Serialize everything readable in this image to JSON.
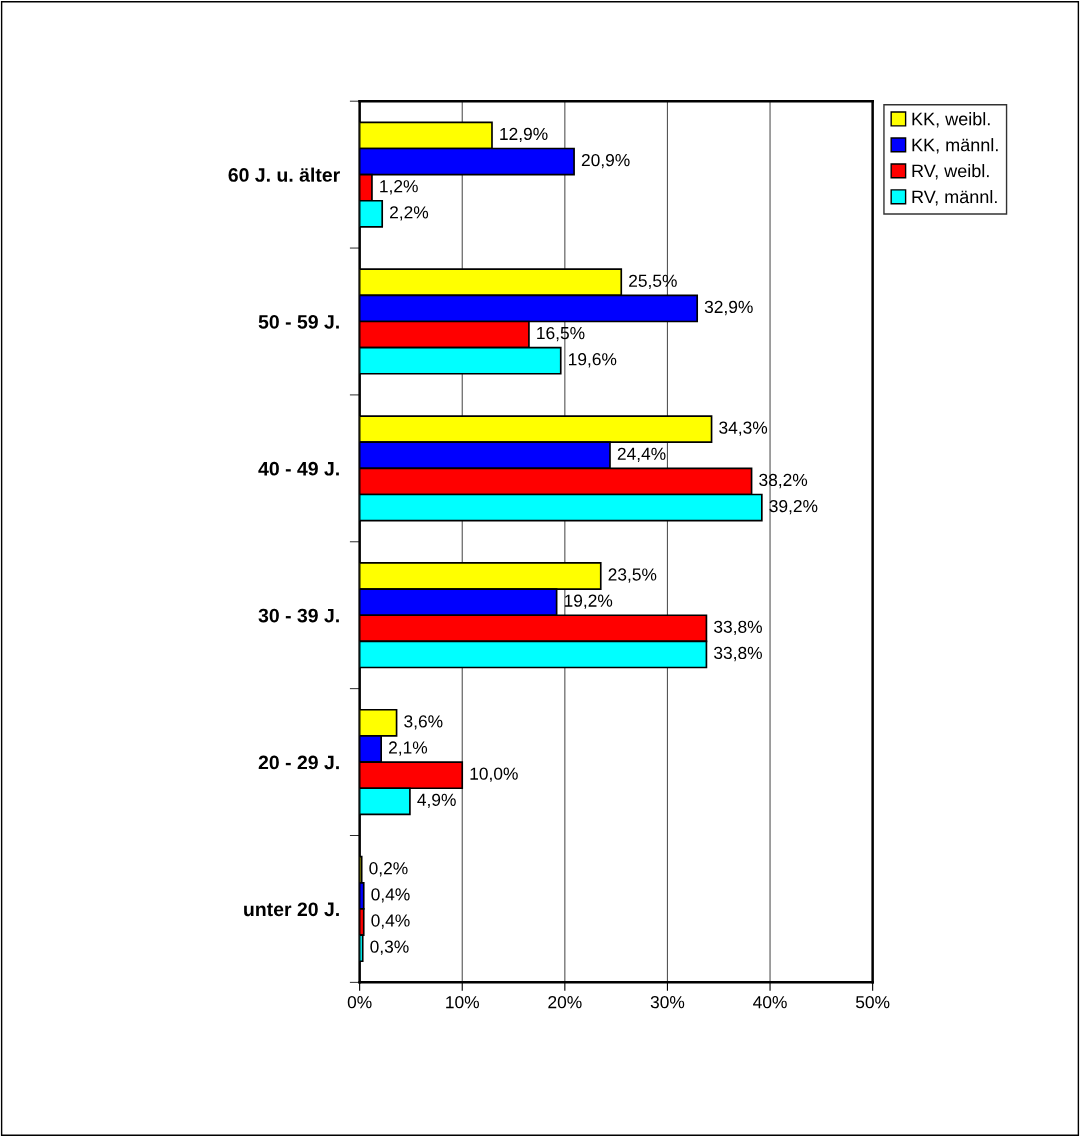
{
  "chart_data": {
    "type": "bar",
    "orientation": "horizontal",
    "categories": [
      "60 J. u. älter",
      "50 - 59 J.",
      "40 - 49 J.",
      "30 - 39 J.",
      "20 - 29 J.",
      "unter 20 J."
    ],
    "series": [
      {
        "name": "KK, weibl.",
        "color": "#ffff00",
        "values": [
          12.9,
          25.5,
          34.3,
          23.5,
          3.6,
          0.2
        ],
        "value_labels": [
          "12,9%",
          "25,5%",
          "34,3%",
          "23,5%",
          "3,6%",
          "0,2%"
        ]
      },
      {
        "name": "KK, männl.",
        "color": "#0000ff",
        "values": [
          20.9,
          32.9,
          24.4,
          19.2,
          2.1,
          0.4
        ],
        "value_labels": [
          "20,9%",
          "32,9%",
          "24,4%",
          "19,2%",
          "2,1%",
          "0,4%"
        ]
      },
      {
        "name": "RV, weibl.",
        "color": "#ff0000",
        "values": [
          1.2,
          16.5,
          38.2,
          33.8,
          10.0,
          0.4
        ],
        "value_labels": [
          "1,2%",
          "16,5%",
          "38,2%",
          "33,8%",
          "10,0%",
          "0,4%"
        ]
      },
      {
        "name": "RV, männl.",
        "color": "#00ffff",
        "values": [
          2.2,
          19.6,
          39.2,
          33.8,
          4.9,
          0.3
        ],
        "value_labels": [
          "2,2%",
          "19,6%",
          "39,2%",
          "33,8%",
          "4,9%",
          "0,3%"
        ]
      }
    ],
    "xlim": [
      0,
      50
    ],
    "xticks": [
      {
        "value": 0,
        "label": "0%"
      },
      {
        "value": 10,
        "label": "10%"
      },
      {
        "value": 20,
        "label": "20%"
      },
      {
        "value": 30,
        "label": "30%"
      },
      {
        "value": 40,
        "label": "40%"
      },
      {
        "value": 50,
        "label": "50%"
      }
    ],
    "grid": "x",
    "legend": "top right"
  }
}
